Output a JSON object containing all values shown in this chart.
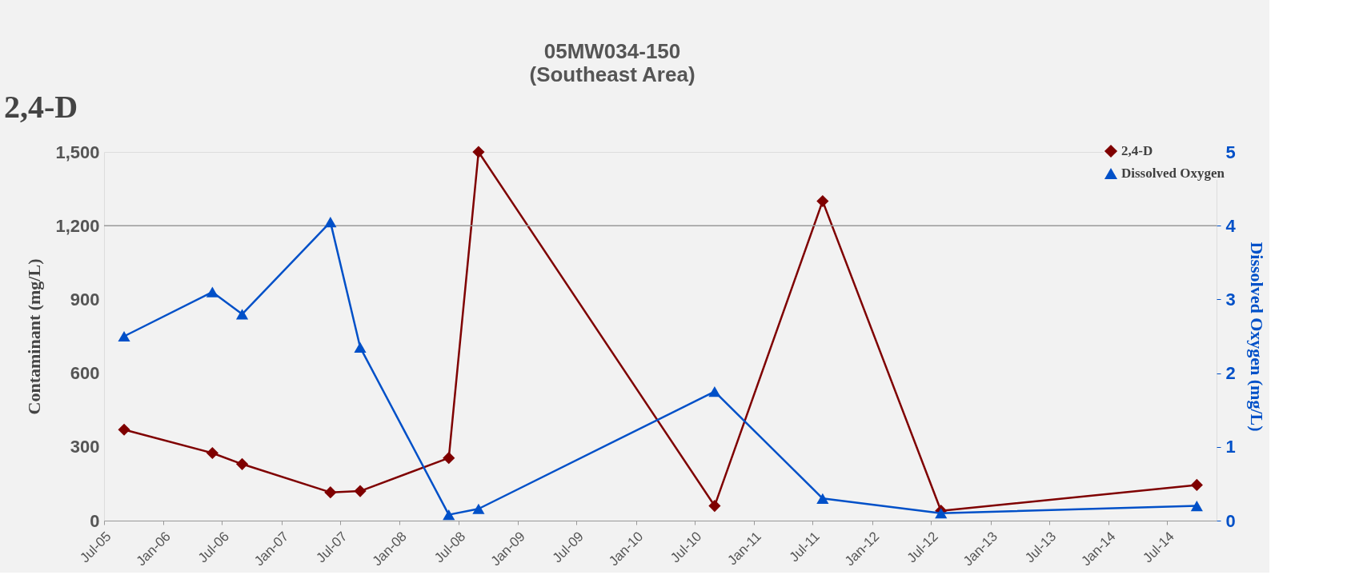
{
  "chart_data": {
    "type": "line",
    "title": "05MW034-150",
    "subtitle": "(Southeast Area)",
    "annotations": [
      "2,4-D"
    ],
    "ylabel": "Contaminant (mg/L)",
    "y2label": "Dissolved Oxygen (mg/L)",
    "x": [
      "2005-09",
      "2006-06",
      "2006-09",
      "2007-06",
      "2007-09",
      "2008-06",
      "2008-09",
      "2010-09",
      "2011-08",
      "2012-08",
      "2014-10"
    ],
    "series": [
      {
        "name": "2,4-D",
        "color": "#7f0000",
        "marker": "diamond",
        "values": [
          370,
          275,
          230,
          115,
          120,
          255,
          1500,
          60,
          1300,
          40,
          145
        ]
      },
      {
        "name": "Dissolved Oxygen",
        "color": "#0050c8",
        "marker": "triangle",
        "axis": "y2",
        "values": [
          2.5,
          3.1,
          2.8,
          4.05,
          2.35,
          0.08,
          0.16,
          1.75,
          0.3,
          0.1,
          0.2
        ]
      }
    ],
    "xlim": [
      "2005-07",
      "2014-12"
    ],
    "xticks": [
      {
        "value": "2005-07",
        "label": "Jul-05"
      },
      {
        "value": "2006-01",
        "label": "Jan-06"
      },
      {
        "value": "2006-07",
        "label": "Jul-06"
      },
      {
        "value": "2007-01",
        "label": "Jan-07"
      },
      {
        "value": "2007-07",
        "label": "Jul-07"
      },
      {
        "value": "2008-01",
        "label": "Jan-08"
      },
      {
        "value": "2008-07",
        "label": "Jul-08"
      },
      {
        "value": "2009-01",
        "label": "Jan-09"
      },
      {
        "value": "2009-07",
        "label": "Jul-09"
      },
      {
        "value": "2010-01",
        "label": "Jan-10"
      },
      {
        "value": "2010-07",
        "label": "Jul-10"
      },
      {
        "value": "2011-01",
        "label": "Jan-11"
      },
      {
        "value": "2011-07",
        "label": "Jul-11"
      },
      {
        "value": "2012-01",
        "label": "Jan-12"
      },
      {
        "value": "2012-07",
        "label": "Jul-12"
      },
      {
        "value": "2013-01",
        "label": "Jan-13"
      },
      {
        "value": "2013-07",
        "label": "Jul-13"
      },
      {
        "value": "2014-01",
        "label": "Jan-14"
      },
      {
        "value": "2014-07",
        "label": "Jul-14"
      }
    ],
    "ylim": [
      0,
      1500
    ],
    "yticks": [
      0,
      {
        "value": 300,
        "label": "300"
      },
      {
        "value": 600,
        "label": "600"
      },
      {
        "value": 900,
        "label": "900"
      },
      {
        "value": 1200,
        "label": "1,200"
      },
      {
        "value": 1500,
        "label": "1,500"
      }
    ],
    "y2lim": [
      0,
      5
    ],
    "y2ticks": [
      0,
      1,
      2,
      3,
      4,
      5
    ],
    "ref_lines": [
      {
        "axis": "y",
        "value": 1200,
        "color": "#999999"
      }
    ],
    "legend": "top right",
    "grid": false
  }
}
